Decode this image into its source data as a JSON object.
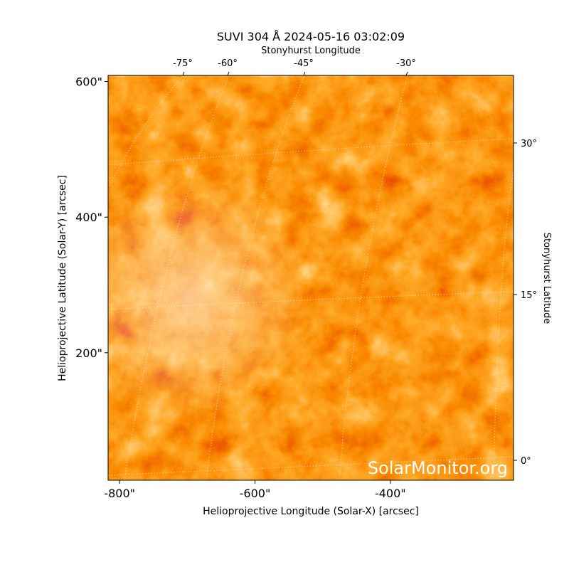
{
  "chart_data": {
    "type": "image",
    "title": "SUVI 304 Å 2024-05-16 03:02:09",
    "x_label": "Helioprojective Longitude (Solar-X) [arcsec]",
    "y_label": "Helioprojective Latitude (Solar-Y) [arcsec]",
    "top_label": "Stonyhurst Longitude",
    "right_label": "Stonyhurst Latitude",
    "watermark": "SolarMonitor.org",
    "xlim": [
      -817,
      -218
    ],
    "ylim": [
      12,
      609
    ],
    "xticks": [
      {
        "value": -800,
        "label": "-800\""
      },
      {
        "value": -600,
        "label": "-600\""
      },
      {
        "value": -400,
        "label": "-400\""
      }
    ],
    "yticks": [
      {
        "value": 200,
        "label": "200\""
      },
      {
        "value": 400,
        "label": "400\""
      },
      {
        "value": 600,
        "label": "600\""
      }
    ],
    "top_ticks": [
      {
        "value": -75,
        "label": "-75°"
      },
      {
        "value": -60,
        "label": "-60°"
      },
      {
        "value": -45,
        "label": "-45°"
      },
      {
        "value": -30,
        "label": "-30°"
      }
    ],
    "right_ticks": [
      {
        "value": 30,
        "label": "30°"
      },
      {
        "value": 15,
        "label": "15°"
      },
      {
        "value": 0,
        "label": "0°"
      }
    ]
  }
}
